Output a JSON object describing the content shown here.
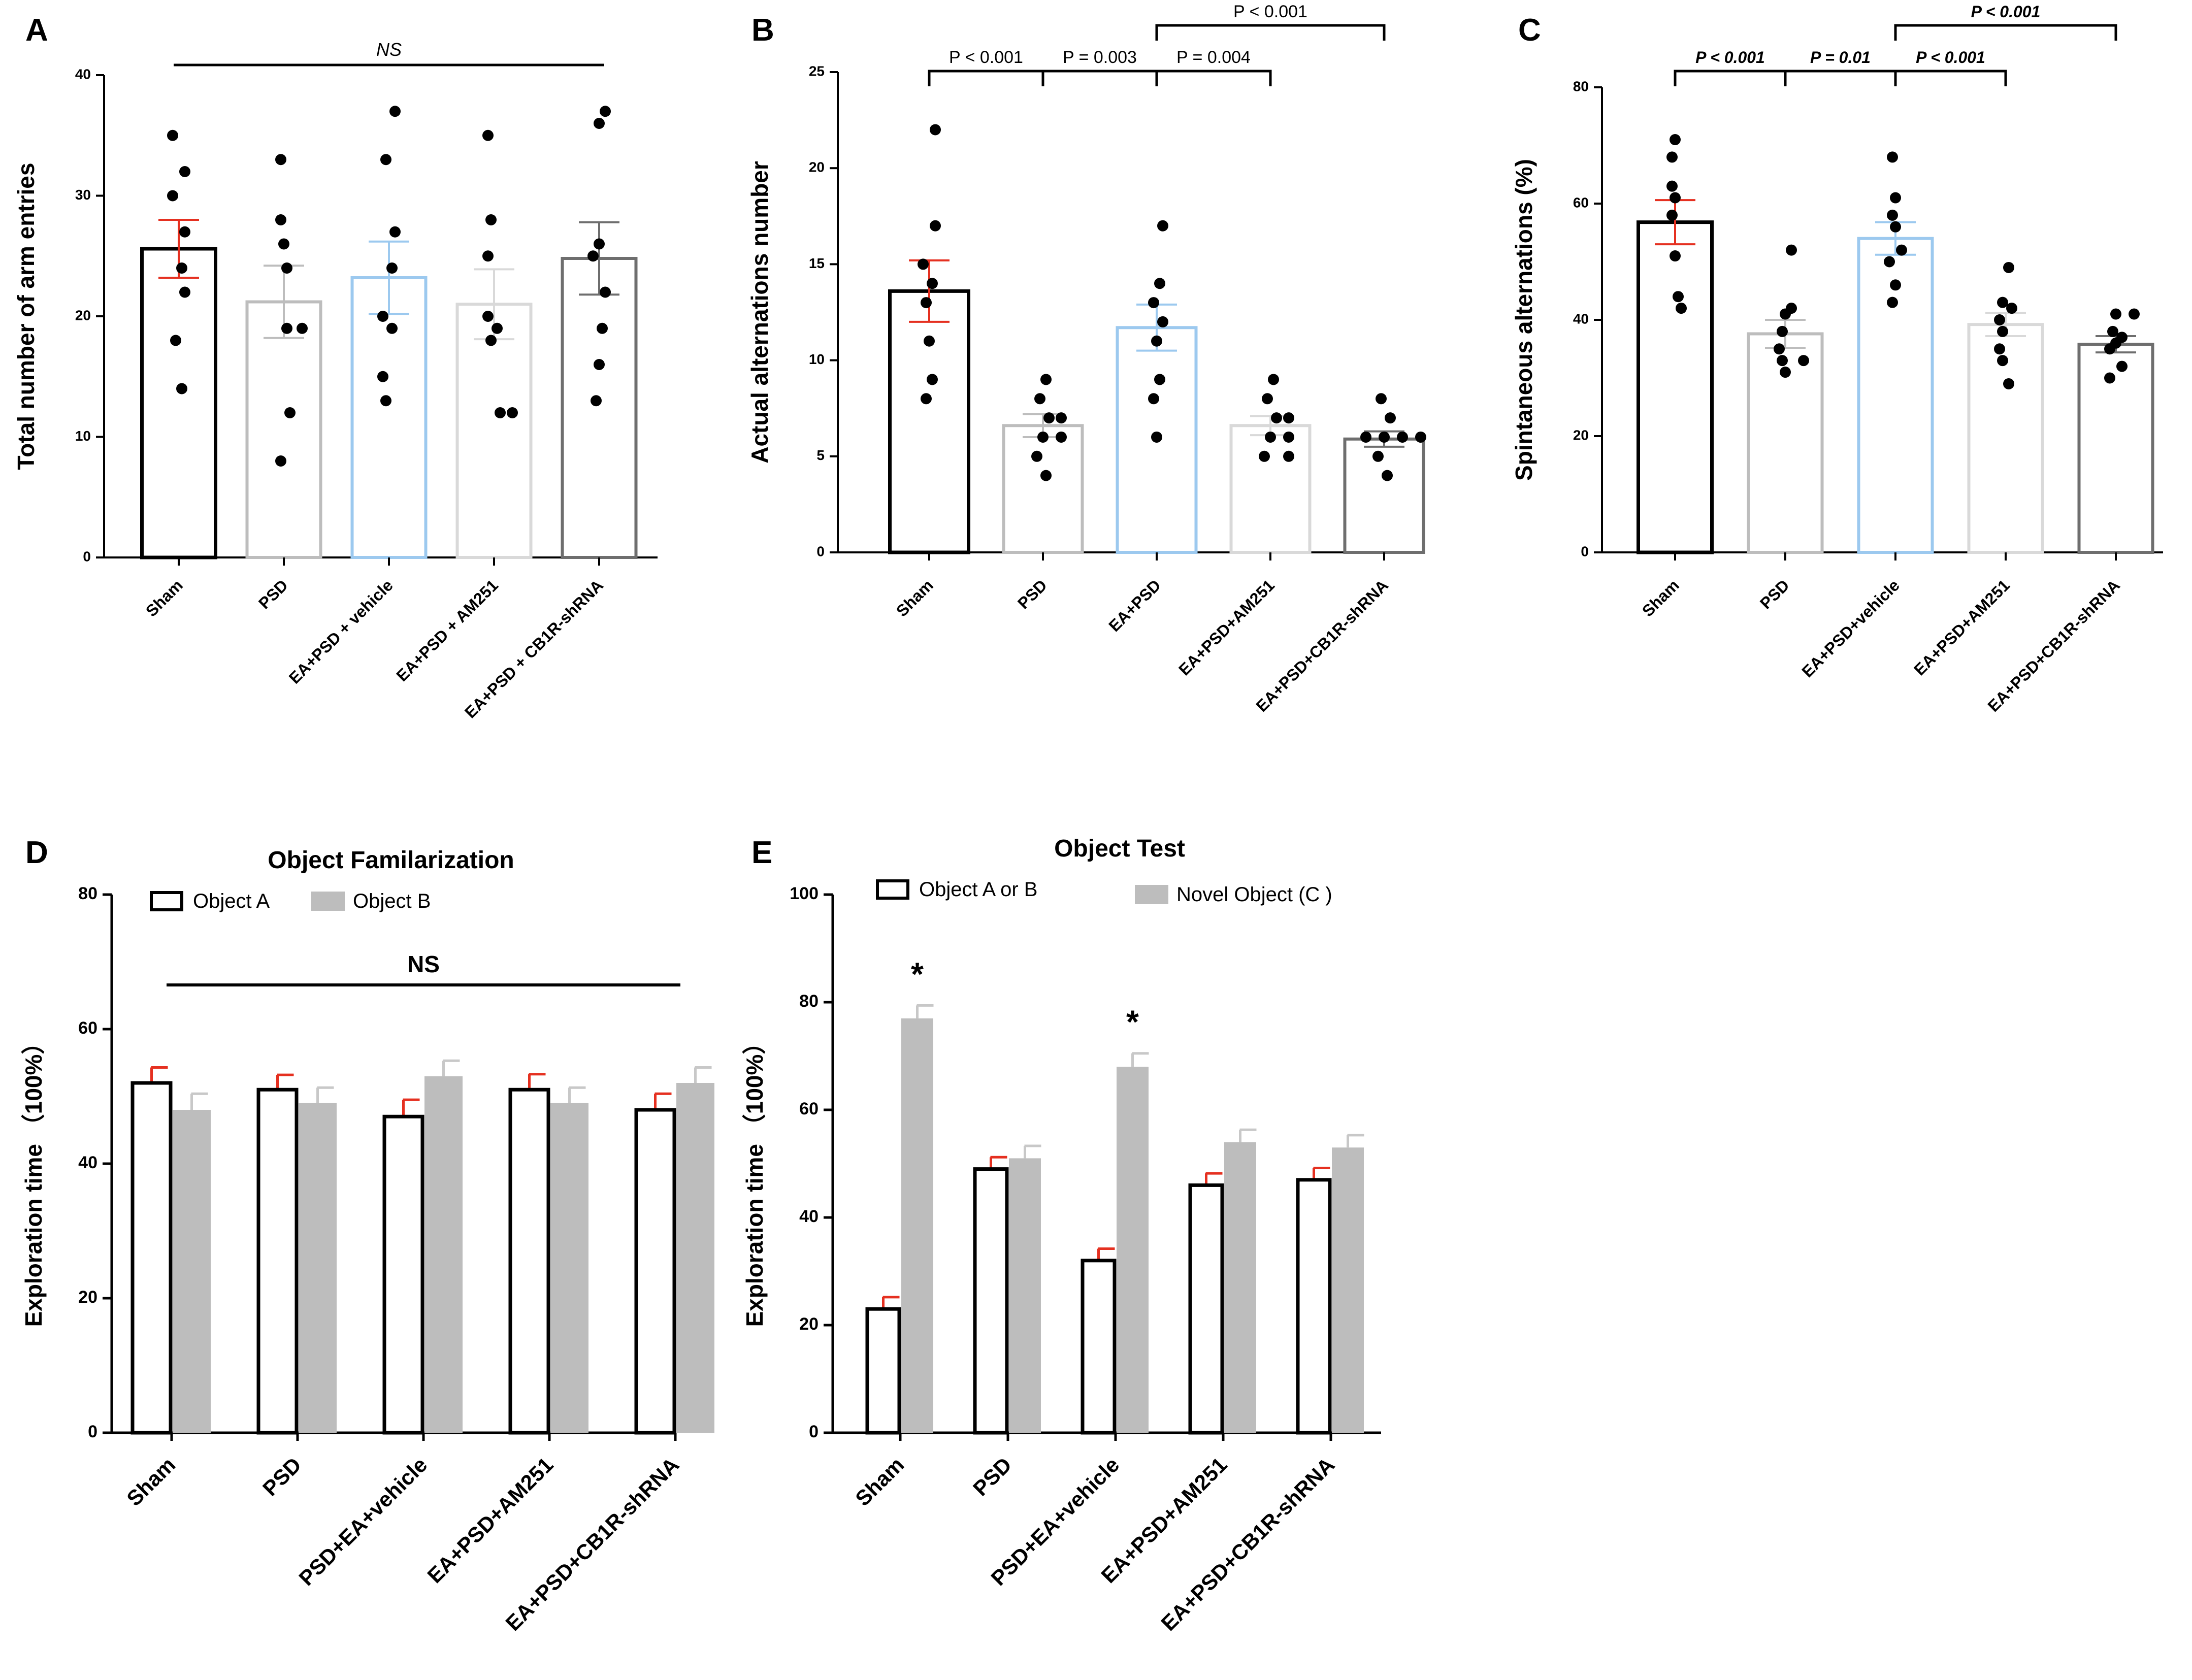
{
  "colors": {
    "sham": "#000000",
    "psd": "#bdbdbd",
    "ea_vehicle": "#9cc9ef",
    "am251": "#d9d9d9",
    "shrna": "#6e6e6e",
    "error_red": "#e53020",
    "grey_fill": "#bdbdbd",
    "grey_error": "#c8c8c8"
  },
  "chart_data": [
    {
      "panel": "A",
      "type": "bar",
      "ylabel": "Total number of arm entries",
      "ylim": [
        0,
        40
      ],
      "yticks": [
        "0",
        "10",
        "20",
        "30",
        "40"
      ],
      "categories": [
        "Sham",
        "PSD",
        "EA+PSD + vehicle",
        "EA+PSD + AM251",
        "EA+PSD + CB1R-shRNA"
      ],
      "values": [
        25.6,
        21.2,
        23.2,
        21.0,
        24.8
      ],
      "errors": [
        2.4,
        3.0,
        3.0,
        2.9,
        3.0
      ],
      "points": [
        [
          35,
          32,
          30,
          27,
          24,
          22,
          18,
          14
        ],
        [
          33,
          28,
          26,
          24,
          19,
          19,
          12,
          8
        ],
        [
          37,
          33,
          27,
          24,
          20,
          19,
          15,
          13
        ],
        [
          35,
          28,
          25,
          20,
          19,
          18,
          12,
          12
        ],
        [
          37,
          36,
          26,
          25,
          22,
          19,
          16,
          13
        ]
      ],
      "comparisons": [
        {
          "from": 0,
          "to": 4,
          "label": "NS"
        }
      ]
    },
    {
      "panel": "B",
      "type": "bar",
      "ylabel": "Actual alternations number",
      "ylim": [
        0,
        25
      ],
      "yticks": [
        "0",
        "5",
        "10",
        "15",
        "20",
        "25"
      ],
      "categories": [
        "Sham",
        "PSD",
        "EA+PSD",
        "EA+PSD+AM251",
        "EA+PSD+CB1R-shRNA"
      ],
      "values": [
        13.6,
        6.6,
        11.7,
        6.6,
        5.9
      ],
      "errors": [
        1.6,
        0.6,
        1.2,
        0.5,
        0.4
      ],
      "points": [
        [
          22,
          17,
          15,
          14,
          13,
          11,
          9,
          8
        ],
        [
          9,
          8,
          7,
          7,
          6,
          6,
          5,
          4
        ],
        [
          17,
          14,
          13,
          12,
          11,
          9,
          8,
          6
        ],
        [
          9,
          8,
          7,
          7,
          6,
          6,
          5,
          5
        ],
        [
          8,
          7,
          6,
          6,
          6,
          6,
          5,
          4
        ]
      ],
      "comparisons": [
        {
          "from": 0,
          "to": 1,
          "label": "P < 0.001"
        },
        {
          "from": 1,
          "to": 2,
          "label": "P = 0.003"
        },
        {
          "from": 2,
          "to": 3,
          "label": "P = 0.004"
        },
        {
          "from": 2,
          "to": 4,
          "label": "P < 0.001"
        }
      ]
    },
    {
      "panel": "C",
      "type": "bar",
      "ylabel": "Spintaneous alternations (%)",
      "ylim": [
        0,
        80
      ],
      "yticks": [
        "0",
        "20",
        "40",
        "60",
        "80"
      ],
      "categories": [
        "Sham",
        "PSD",
        "EA+PSD+vehicle",
        "EA+PSD+AM251",
        "EA+PSD+CB1R-shRNA"
      ],
      "values": [
        56.8,
        37.6,
        54.0,
        39.2,
        35.8
      ],
      "errors": [
        3.8,
        2.4,
        2.8,
        2.0,
        1.4
      ],
      "points": [
        [
          71,
          68,
          63,
          61,
          58,
          51,
          44,
          42
        ],
        [
          52,
          42,
          41,
          38,
          35,
          33,
          33,
          31
        ],
        [
          68,
          61,
          58,
          56,
          52,
          50,
          46,
          43
        ],
        [
          49,
          43,
          42,
          40,
          38,
          35,
          33,
          29
        ],
        [
          41,
          41,
          38,
          37,
          36,
          35,
          32,
          30
        ]
      ],
      "comparisons": [
        {
          "from": 0,
          "to": 1,
          "label": "P < 0.001"
        },
        {
          "from": 1,
          "to": 2,
          "label": "P = 0.01"
        },
        {
          "from": 2,
          "to": 3,
          "label": "P < 0.001"
        },
        {
          "from": 2,
          "to": 4,
          "label": "P < 0.001"
        }
      ]
    },
    {
      "panel": "D",
      "type": "bar",
      "title": "Object Familarization",
      "ylabel": "Exploration time  （100%）",
      "ylim": [
        0,
        80
      ],
      "yticks": [
        "0",
        "20",
        "40",
        "60",
        "80"
      ],
      "categories": [
        "Sham",
        "PSD",
        "PSD+EA+vehicle",
        "EA+PSD+AM251",
        "EA+PSD+CB1R-shRNA"
      ],
      "series": [
        {
          "name": "Object A",
          "values": [
            52,
            51,
            47,
            51,
            48
          ],
          "errors": [
            2.3,
            2.2,
            2.5,
            2.3,
            2.4
          ]
        },
        {
          "name": "Object B",
          "values": [
            48,
            49,
            53,
            49,
            52
          ],
          "errors": [
            2.4,
            2.3,
            2.3,
            2.3,
            2.3
          ]
        }
      ],
      "annotations": [
        {
          "from": 0,
          "to": 4,
          "label": "NS"
        }
      ]
    },
    {
      "panel": "E",
      "type": "bar",
      "title": "Object Test",
      "ylabel": "Exploration time  （100%）",
      "ylim": [
        0,
        100
      ],
      "yticks": [
        "0",
        "20",
        "40",
        "60",
        "80",
        "100"
      ],
      "categories": [
        "Sham",
        "PSD",
        "PSD+EA+vehicle",
        "EA+PSD+AM251",
        "EA+PSD+CB1R-shRNA"
      ],
      "series": [
        {
          "name": "Object A or B",
          "values": [
            23,
            49,
            32,
            46,
            47
          ],
          "errors": [
            2.2,
            2.2,
            2.2,
            2.2,
            2.2
          ]
        },
        {
          "name": "Novel Object (C )",
          "values": [
            77,
            51,
            68,
            54,
            53
          ],
          "errors": [
            2.4,
            2.3,
            2.5,
            2.3,
            2.3
          ]
        }
      ],
      "significance": [
        {
          "category": 0,
          "label": "*"
        },
        {
          "category": 2,
          "label": "*"
        }
      ]
    }
  ]
}
